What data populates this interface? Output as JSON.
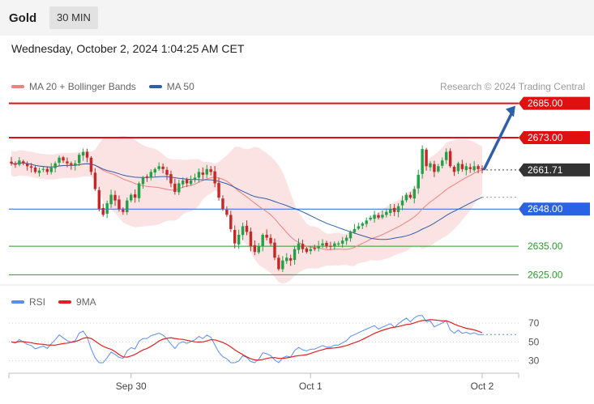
{
  "header": {
    "symbol": "Gold",
    "timeframe": "30 MIN"
  },
  "datetime": "Wednesday, October 2, 2024 1:04:25 AM CET",
  "legend": {
    "ma20": {
      "label": "MA 20 + Bollinger Bands",
      "color": "#f08080"
    },
    "ma50": {
      "label": "MA 50",
      "color": "#2f5fa8"
    }
  },
  "credit": "Research © 2024 Trading Central",
  "rsi_legend": {
    "rsi": {
      "label": "RSI",
      "color": "#5b8def"
    },
    "ma9": {
      "label": "9MA",
      "color": "#e02020"
    }
  },
  "chart_data": [
    {
      "type": "candlestick",
      "ylim": [
        2622,
        2690
      ],
      "x_ticks": [
        {
          "label": "Sep 30",
          "i": 30
        },
        {
          "label": "Oct 1",
          "i": 75
        },
        {
          "label": "Oct 2",
          "i": 118
        }
      ],
      "current_price": {
        "value": 2661.71,
        "label": "2661.71"
      },
      "levels": [
        {
          "value": 2685.0,
          "label": "2685.00",
          "style": "resistance",
          "color": "#e01010"
        },
        {
          "value": 2673.0,
          "label": "2673.00",
          "style": "resistance",
          "color": "#e01010"
        },
        {
          "value": 2648.0,
          "label": "2648.00",
          "style": "pivot",
          "color": "#2a62e6"
        },
        {
          "value": 2635.0,
          "label": "2635.00",
          "style": "support",
          "color": "#2a9a2a"
        },
        {
          "value": 2625.0,
          "label": "2625.00",
          "style": "support",
          "color": "#2a9a2a"
        }
      ],
      "forecast_arrow": {
        "from": 2661.7,
        "to": 2685,
        "color": "#2f5fa8"
      },
      "closes": [
        2664,
        2663.5,
        2665,
        2664,
        2663,
        2662.5,
        2661,
        2661.5,
        2662,
        2661,
        2662.5,
        2664,
        2666,
        2665,
        2664,
        2663.5,
        2664,
        2667,
        2668,
        2666,
        2661,
        2655,
        2648,
        2646,
        2650,
        2653,
        2651,
        2648,
        2647,
        2651,
        2653,
        2652,
        2657,
        2659,
        2659,
        2661,
        2662,
        2663,
        2662,
        2660,
        2657,
        2654,
        2657,
        2658,
        2657,
        2658,
        2659,
        2661,
        2660,
        2662,
        2661,
        2657,
        2652,
        2648,
        2646,
        2641,
        2636,
        2639,
        2642,
        2640,
        2635,
        2633,
        2635,
        2639,
        2638,
        2636,
        2631,
        2627,
        2630,
        2631,
        2630,
        2634,
        2636,
        2634,
        2633,
        2634,
        2634,
        2635,
        2636,
        2635,
        2635,
        2636,
        2636,
        2637,
        2638,
        2640,
        2641,
        2642,
        2643,
        2644,
        2645,
        2646,
        2645,
        2646,
        2647,
        2648,
        2647,
        2649,
        2651,
        2653,
        2652,
        2655,
        2660,
        2669,
        2663,
        2664,
        2661,
        2663,
        2665,
        2668,
        2663,
        2661,
        2664,
        2662,
        2663,
        2662,
        2663,
        2662,
        2662
      ],
      "rsi": {
        "levels": [
          70,
          50,
          30
        ],
        "ylim": [
          22,
          82
        ]
      }
    }
  ]
}
